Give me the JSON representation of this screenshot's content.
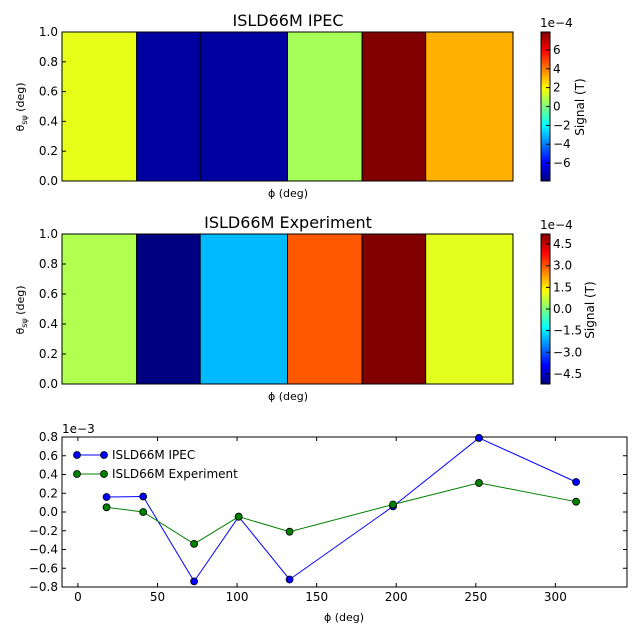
{
  "chart_data": [
    {
      "type": "heatmap",
      "title": "ISLD66M IPEC",
      "xlabel": "ϕ (deg)",
      "ylabel": "θ",
      "ylabel_sub": "sψ",
      "ylabel_tail": " (deg)",
      "y_ticks": [
        "0.0",
        "0.2",
        "0.4",
        "0.6",
        "0.8",
        "1.0"
      ],
      "ylim": [
        0,
        1
      ],
      "colormap": "jet",
      "cells": [
        {
          "phi_start": -10,
          "phi_end": 37,
          "value": 0.00016
        },
        {
          "phi_start": 37,
          "phi_end": 77,
          "value": -0.00074
        },
        {
          "phi_start": 77,
          "phi_end": 132,
          "value": -0.00074
        },
        {
          "phi_start": 132,
          "phi_end": 179,
          "value": 6e-05
        },
        {
          "phi_start": 179,
          "phi_end": 219,
          "value": 0.00079
        },
        {
          "phi_start": 219,
          "phi_end": 274,
          "value": 0.00032
        }
      ],
      "colorbar": {
        "label": "Signal (T)",
        "exponent": "1e−4",
        "min": -0.00079,
        "max": 0.00079,
        "ticks": [
          {
            "value": -6,
            "label": "−6"
          },
          {
            "value": -4,
            "label": "−4"
          },
          {
            "value": -2,
            "label": "−2"
          },
          {
            "value": 0,
            "label": "0"
          },
          {
            "value": 2,
            "label": "2"
          },
          {
            "value": 4,
            "label": "4"
          },
          {
            "value": 6,
            "label": "6"
          }
        ]
      }
    },
    {
      "type": "heatmap",
      "title": "ISLD66M Experiment",
      "xlabel": "ϕ (deg)",
      "ylabel": "θ",
      "ylabel_sub": "sψ",
      "ylabel_tail": " (deg)",
      "y_ticks": [
        "0.0",
        "0.2",
        "0.4",
        "0.6",
        "0.8",
        "1.0"
      ],
      "ylim": [
        0,
        1
      ],
      "colormap": "jet",
      "cells": [
        {
          "phi_start": -10,
          "phi_end": 37,
          "value": 5e-05
        },
        {
          "phi_start": 37,
          "phi_end": 77,
          "value": -0.00052
        },
        {
          "phi_start": 77,
          "phi_end": 132,
          "value": -0.0002
        },
        {
          "phi_start": 132,
          "phi_end": 179,
          "value": 0.0003
        },
        {
          "phi_start": 179,
          "phi_end": 219,
          "value": 0.00052
        },
        {
          "phi_start": 219,
          "phi_end": 274,
          "value": 0.0001
        }
      ],
      "colorbar": {
        "label": "Signal (T)",
        "exponent": "1e−4",
        "min": -0.00052,
        "max": 0.00052,
        "ticks": [
          {
            "value": -4.5,
            "label": "−4.5"
          },
          {
            "value": -3,
            "label": "−3.0"
          },
          {
            "value": -1.5,
            "label": "−1.5"
          },
          {
            "value": 0,
            "label": "0.0"
          },
          {
            "value": 1.5,
            "label": "1.5"
          },
          {
            "value": 3,
            "label": "3.0"
          },
          {
            "value": 4.5,
            "label": "4.5"
          }
        ]
      }
    },
    {
      "type": "line",
      "xlabel": "ϕ (deg)",
      "ylabel": "",
      "exponent": "1e−3",
      "xlim": [
        -10,
        345
      ],
      "ylim": [
        -0.8,
        0.8
      ],
      "x_ticks": [
        0,
        50,
        100,
        150,
        200,
        250,
        300
      ],
      "y_ticks": [
        {
          "value": -0.8,
          "label": "−0.8"
        },
        {
          "value": -0.6,
          "label": "−0.6"
        },
        {
          "value": -0.4,
          "label": "−0.4"
        },
        {
          "value": -0.2,
          "label": "−0.2"
        },
        {
          "value": 0.0,
          "label": "0.0"
        },
        {
          "value": 0.2,
          "label": "0.2"
        },
        {
          "value": 0.4,
          "label": "0.4"
        },
        {
          "value": 0.6,
          "label": "0.6"
        },
        {
          "value": 0.8,
          "label": "0.8"
        }
      ],
      "legend_position": "top-left",
      "series": [
        {
          "name": "ISLD66M IPEC",
          "color": "#0000ff",
          "x": [
            18,
            41,
            73,
            101,
            133,
            198,
            252,
            313
          ],
          "y": [
            0.16,
            0.165,
            -0.74,
            -0.05,
            -0.72,
            0.06,
            0.79,
            0.32
          ]
        },
        {
          "name": "ISLD66M Experiment",
          "color": "#008000",
          "x": [
            18,
            41,
            73,
            101,
            133,
            198,
            252,
            313
          ],
          "y": [
            0.05,
            0.0,
            -0.34,
            -0.05,
            -0.21,
            0.08,
            0.31,
            0.11
          ]
        }
      ]
    }
  ]
}
